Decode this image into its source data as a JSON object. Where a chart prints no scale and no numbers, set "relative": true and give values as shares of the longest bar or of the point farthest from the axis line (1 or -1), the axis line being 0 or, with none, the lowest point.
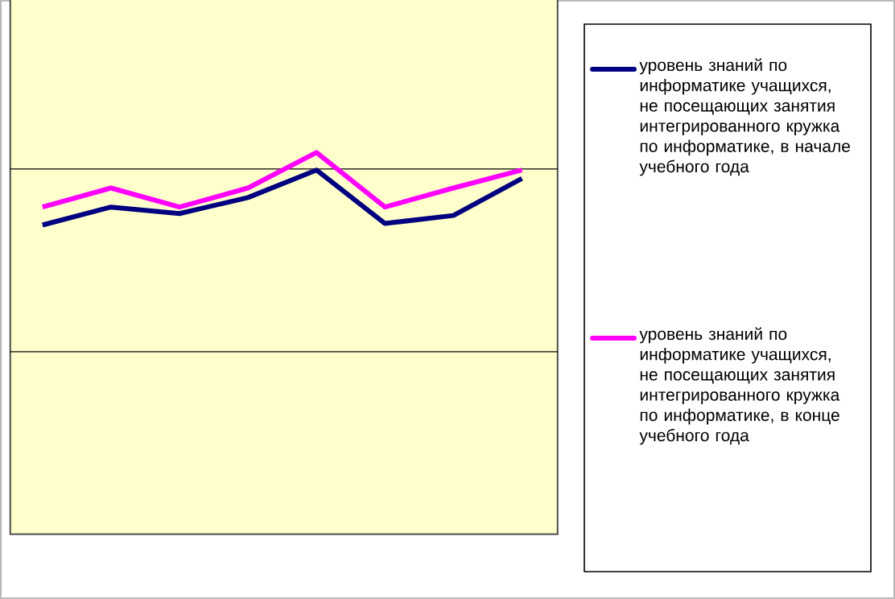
{
  "chart_data": {
    "type": "line",
    "relative": true,
    "categories": [
      null,
      null,
      null,
      null,
      null,
      null,
      null,
      null
    ],
    "series": [
      {
        "name": "уровень знаний  по информатике учащихся, не посещающих занятия интегрированного кружка по информатике, в начале учебного года",
        "color": "#000080",
        "values": [
          0.81,
          0.857,
          0.84,
          0.882,
          0.954,
          0.814,
          0.835,
          0.932
        ]
      },
      {
        "name": "уровень знаний  по информатике учащихся, не посещающих занятия интегрированного кружка по информатике, в конце учебного года",
        "color": "#ff00ff",
        "values": [
          0.857,
          0.907,
          0.857,
          0.907,
          1,
          0.857,
          0.907,
          0.954
        ]
      }
    ],
    "ref_lines": [
      {
        "axis": "y",
        "value": 0.478,
        "color": "#000000"
      },
      {
        "axis": "y",
        "value": 0.957,
        "color": "#000000"
      }
    ],
    "legend": "right",
    "marker": "none",
    "line_style": "solid"
  }
}
